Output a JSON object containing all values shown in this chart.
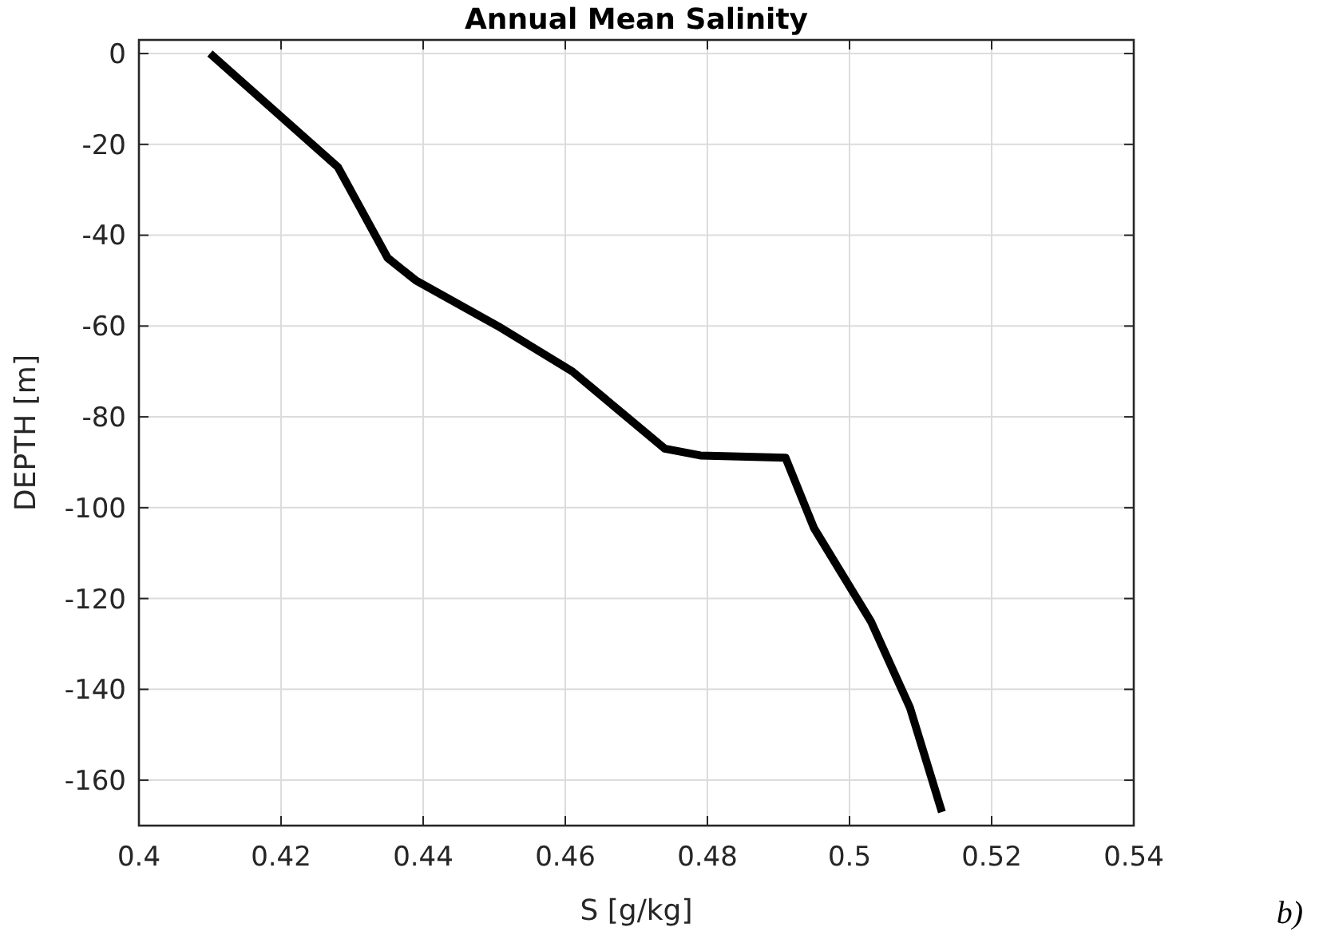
{
  "chart_data": {
    "type": "line",
    "title": "Annual Mean Salinity",
    "xlabel": "S [g/kg]",
    "ylabel": "DEPTH [m]",
    "series": [
      {
        "color": "#000000",
        "x": [
          0.41,
          0.428,
          0.435,
          0.439,
          0.4505,
          0.461,
          0.474,
          0.479,
          0.491,
          0.495,
          0.503,
          0.5085,
          0.513
        ],
        "values": [
          0,
          -25,
          -45,
          -50,
          -60,
          -70,
          -87,
          -88.5,
          -89,
          -104.5,
          -125,
          -144,
          -167
        ]
      }
    ],
    "xlim": [
      0.4,
      0.54
    ],
    "xticks": [
      0.4,
      0.42,
      0.44,
      0.46,
      0.48,
      0.5,
      0.52,
      0.54
    ],
    "ylim": [
      -170,
      3
    ],
    "yticks": [
      -160,
      -140,
      -120,
      -100,
      -80,
      -60,
      -40,
      -20,
      0
    ],
    "grid": true,
    "marker": "none",
    "line_style": "solid",
    "annotations": [
      "b)"
    ]
  }
}
